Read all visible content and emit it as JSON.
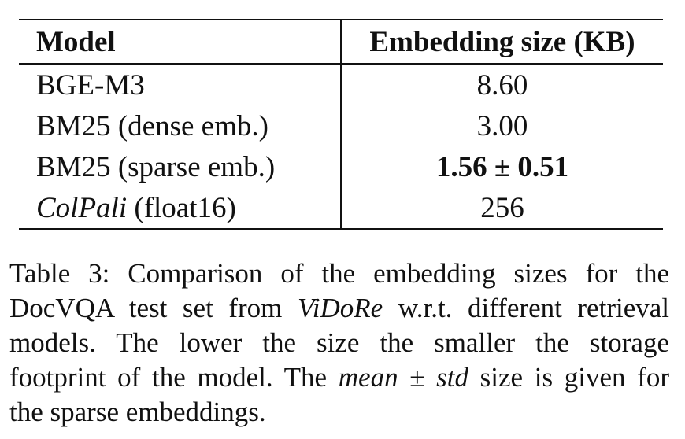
{
  "table": {
    "headers": [
      "Model",
      "Embedding size (KB)"
    ],
    "rows": [
      {
        "model": "BGE-M3",
        "size": "8.60"
      },
      {
        "model": "BM25 (dense emb.)",
        "size": "3.00"
      },
      {
        "model": "BM25 (sparse emb.)",
        "size": "1.56 ± 0.51"
      },
      {
        "model_italic": "ColPali",
        "model_rest": " (float16)",
        "size": "256"
      }
    ]
  },
  "caption": {
    "line1": "Table 3: Comparison of the embedding sizes for the",
    "line2_a": "DocVQA test set from ",
    "line2_em": "ViDoRe",
    "line2_b": " w.r.t. different retrieval",
    "line3": "models.  The lower the size the smaller the storage",
    "line4_a": "footprint of the model. The ",
    "line4_em1": "mean",
    "line4_pm": " ± ",
    "line4_em2": "std",
    "line4_b": " size is given for",
    "line5": "the sparse embeddings."
  }
}
